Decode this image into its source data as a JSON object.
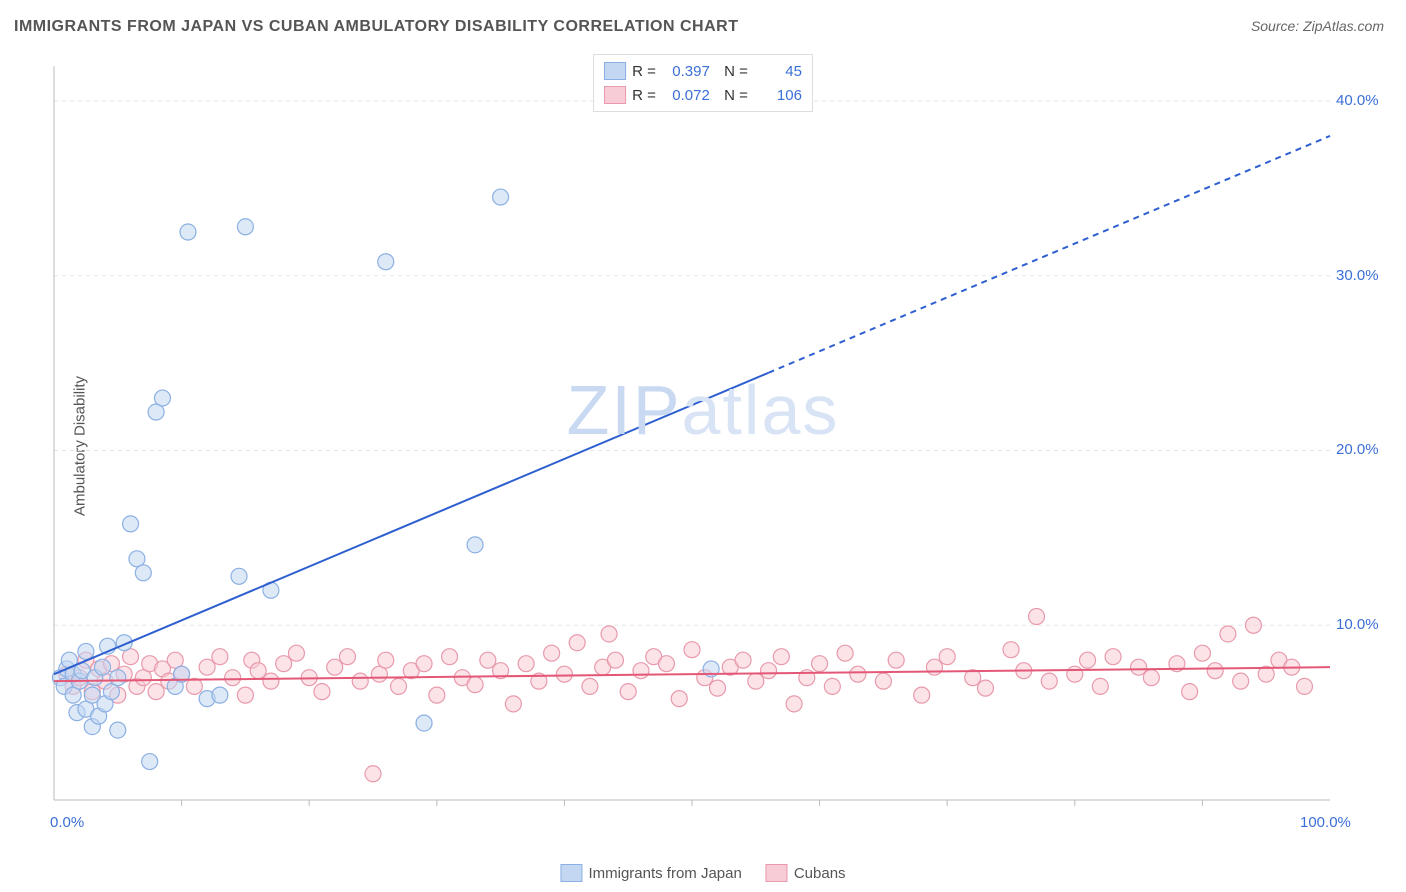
{
  "title": "IMMIGRANTS FROM JAPAN VS CUBAN AMBULATORY DISABILITY CORRELATION CHART",
  "source": "Source: ZipAtlas.com",
  "ylabel": "Ambulatory Disability",
  "watermark_zip": "ZIP",
  "watermark_atlas": "atlas",
  "chart": {
    "type": "scatter",
    "background_color": "#ffffff",
    "grid_color": "#e5e5e5",
    "axis_line_color": "#bbbbbb",
    "xlim": [
      0,
      100
    ],
    "ylim": [
      0,
      42
    ],
    "x_ticks": [
      0,
      100
    ],
    "x_tick_labels": [
      "0.0%",
      "100.0%"
    ],
    "x_minor_ticks": [
      10,
      20,
      30,
      40,
      50,
      60,
      70,
      80,
      90
    ],
    "y_ticks": [
      10,
      20,
      30,
      40
    ],
    "y_tick_labels": [
      "10.0%",
      "20.0%",
      "30.0%",
      "40.0%"
    ],
    "marker_radius": 8,
    "marker_stroke_width": 1.2,
    "series": [
      {
        "name": "Immigrants from Japan",
        "fill_color": "#c3d7f3",
        "stroke_color": "#8bb0e3",
        "line_color": "#2e5fd0",
        "R": "0.397",
        "N": "45",
        "trend": {
          "x1": 0,
          "y1": 7.2,
          "x2": 100,
          "y2": 38.0,
          "solid_until_x": 56
        },
        "points": [
          [
            0.5,
            7.0
          ],
          [
            0.8,
            6.5
          ],
          [
            1.0,
            7.5
          ],
          [
            1.2,
            8.0
          ],
          [
            1.5,
            6.0
          ],
          [
            1.5,
            7.2
          ],
          [
            1.8,
            5.0
          ],
          [
            2.0,
            6.8
          ],
          [
            2.2,
            7.4
          ],
          [
            2.5,
            5.2
          ],
          [
            2.5,
            8.5
          ],
          [
            3.0,
            4.2
          ],
          [
            3.0,
            6.0
          ],
          [
            3.2,
            7.0
          ],
          [
            3.5,
            4.8
          ],
          [
            3.8,
            7.6
          ],
          [
            4.0,
            5.5
          ],
          [
            4.2,
            8.8
          ],
          [
            4.5,
            6.2
          ],
          [
            5.0,
            4.0
          ],
          [
            5.0,
            7.0
          ],
          [
            5.5,
            9.0
          ],
          [
            6.0,
            15.8
          ],
          [
            6.5,
            13.8
          ],
          [
            7.0,
            13.0
          ],
          [
            7.5,
            2.2
          ],
          [
            8.0,
            22.2
          ],
          [
            8.5,
            23.0
          ],
          [
            9.5,
            6.5
          ],
          [
            10.0,
            7.2
          ],
          [
            10.5,
            32.5
          ],
          [
            12.0,
            5.8
          ],
          [
            13.0,
            6.0
          ],
          [
            14.5,
            12.8
          ],
          [
            15.0,
            32.8
          ],
          [
            17.0,
            12.0
          ],
          [
            26.0,
            30.8
          ],
          [
            29.0,
            4.4
          ],
          [
            33.0,
            14.6
          ],
          [
            35.0,
            34.5
          ],
          [
            51.5,
            7.5
          ]
        ]
      },
      {
        "name": "Cubans",
        "fill_color": "#f7ccd6",
        "stroke_color": "#e89aab",
        "line_color": "#e45877",
        "R": "0.072",
        "N": "106",
        "trend": {
          "x1": 0,
          "y1": 6.8,
          "x2": 100,
          "y2": 7.6,
          "solid_until_x": 100
        },
        "points": [
          [
            1.0,
            7.2
          ],
          [
            1.5,
            6.5
          ],
          [
            2.0,
            7.0
          ],
          [
            2.5,
            8.0
          ],
          [
            3.0,
            6.2
          ],
          [
            3.5,
            7.5
          ],
          [
            4.0,
            6.8
          ],
          [
            4.5,
            7.8
          ],
          [
            5.0,
            6.0
          ],
          [
            5.5,
            7.2
          ],
          [
            6.0,
            8.2
          ],
          [
            6.5,
            6.5
          ],
          [
            7.0,
            7.0
          ],
          [
            7.5,
            7.8
          ],
          [
            8.0,
            6.2
          ],
          [
            8.5,
            7.5
          ],
          [
            9.0,
            6.8
          ],
          [
            9.5,
            8.0
          ],
          [
            10.0,
            7.2
          ],
          [
            11.0,
            6.5
          ],
          [
            12.0,
            7.6
          ],
          [
            13.0,
            8.2
          ],
          [
            14.0,
            7.0
          ],
          [
            15.0,
            6.0
          ],
          [
            15.5,
            8.0
          ],
          [
            16.0,
            7.4
          ],
          [
            17.0,
            6.8
          ],
          [
            18.0,
            7.8
          ],
          [
            19.0,
            8.4
          ],
          [
            20.0,
            7.0
          ],
          [
            21.0,
            6.2
          ],
          [
            22.0,
            7.6
          ],
          [
            23.0,
            8.2
          ],
          [
            24.0,
            6.8
          ],
          [
            25.0,
            1.5
          ],
          [
            25.5,
            7.2
          ],
          [
            26.0,
            8.0
          ],
          [
            27.0,
            6.5
          ],
          [
            28.0,
            7.4
          ],
          [
            29.0,
            7.8
          ],
          [
            30.0,
            6.0
          ],
          [
            31.0,
            8.2
          ],
          [
            32.0,
            7.0
          ],
          [
            33.0,
            6.6
          ],
          [
            34.0,
            8.0
          ],
          [
            35.0,
            7.4
          ],
          [
            36.0,
            5.5
          ],
          [
            37.0,
            7.8
          ],
          [
            38.0,
            6.8
          ],
          [
            39.0,
            8.4
          ],
          [
            40.0,
            7.2
          ],
          [
            41.0,
            9.0
          ],
          [
            42.0,
            6.5
          ],
          [
            43.0,
            7.6
          ],
          [
            43.5,
            9.5
          ],
          [
            44.0,
            8.0
          ],
          [
            45.0,
            6.2
          ],
          [
            46.0,
            7.4
          ],
          [
            47.0,
            8.2
          ],
          [
            48.0,
            7.8
          ],
          [
            49.0,
            5.8
          ],
          [
            50.0,
            8.6
          ],
          [
            51.0,
            7.0
          ],
          [
            52.0,
            6.4
          ],
          [
            53.0,
            7.6
          ],
          [
            54.0,
            8.0
          ],
          [
            55.0,
            6.8
          ],
          [
            56.0,
            7.4
          ],
          [
            57.0,
            8.2
          ],
          [
            58.0,
            5.5
          ],
          [
            59.0,
            7.0
          ],
          [
            60.0,
            7.8
          ],
          [
            61.0,
            6.5
          ],
          [
            62.0,
            8.4
          ],
          [
            63.0,
            7.2
          ],
          [
            65.0,
            6.8
          ],
          [
            66.0,
            8.0
          ],
          [
            68.0,
            6.0
          ],
          [
            69.0,
            7.6
          ],
          [
            70.0,
            8.2
          ],
          [
            72.0,
            7.0
          ],
          [
            73.0,
            6.4
          ],
          [
            75.0,
            8.6
          ],
          [
            76.0,
            7.4
          ],
          [
            77.0,
            10.5
          ],
          [
            78.0,
            6.8
          ],
          [
            80.0,
            7.2
          ],
          [
            81.0,
            8.0
          ],
          [
            82.0,
            6.5
          ],
          [
            83.0,
            8.2
          ],
          [
            85.0,
            7.6
          ],
          [
            86.0,
            7.0
          ],
          [
            88.0,
            7.8
          ],
          [
            89.0,
            6.2
          ],
          [
            90.0,
            8.4
          ],
          [
            91.0,
            7.4
          ],
          [
            92.0,
            9.5
          ],
          [
            93.0,
            6.8
          ],
          [
            94.0,
            10.0
          ],
          [
            95.0,
            7.2
          ],
          [
            96.0,
            8.0
          ],
          [
            97.0,
            7.6
          ],
          [
            98.0,
            6.5
          ]
        ]
      }
    ]
  }
}
